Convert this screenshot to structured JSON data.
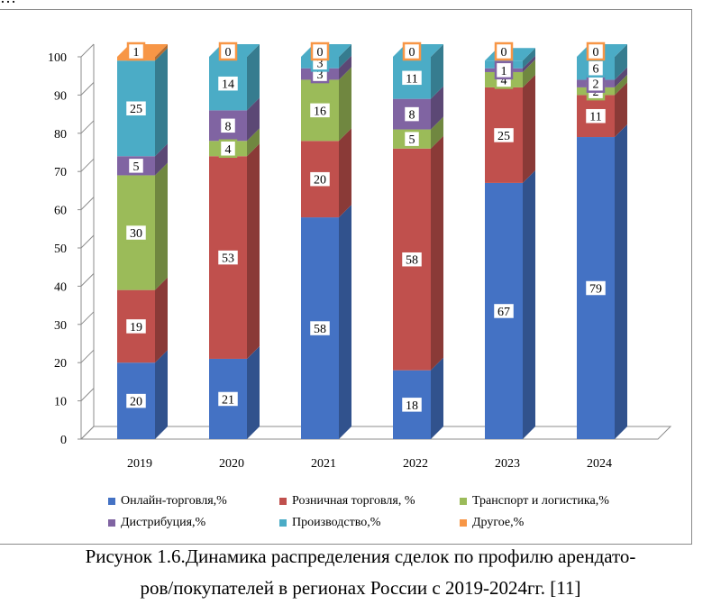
{
  "partial_top_text": "…",
  "caption": {
    "line1": "Рисунок  1.6.Динамика распределения сделок по профилю арендато-",
    "line2": "ров/покупателей в регионах России с  2019-2024гг. [11]"
  },
  "chart_data": {
    "type": "bar",
    "stacked": true,
    "three_d": true,
    "categories": [
      "2019",
      "2020",
      "2021",
      "2022",
      "2023",
      "2024"
    ],
    "ylim": [
      0,
      100
    ],
    "yticks": [
      0,
      10,
      20,
      30,
      40,
      50,
      60,
      70,
      80,
      90,
      100
    ],
    "grid": false,
    "legend_position": "bottom",
    "series": [
      {
        "name": "Онлайн-торговля,%",
        "color": "#4472c4",
        "values": [
          20,
          21,
          58,
          18,
          67,
          79
        ],
        "labels": [
          "20",
          "21",
          "58",
          "18",
          "67",
          "79"
        ]
      },
      {
        "name": "Розничная торговля, %",
        "color": "#c0504d",
        "values": [
          19,
          53,
          20,
          58,
          25,
          11
        ],
        "labels": [
          "19",
          "53",
          "20",
          "58",
          "25",
          "11"
        ]
      },
      {
        "name": "Транспорт и логистика,%",
        "color": "#9bbb59",
        "values": [
          30,
          4,
          16,
          5,
          4,
          2
        ],
        "labels": [
          "30",
          "4",
          "16",
          "5",
          "4",
          "2"
        ]
      },
      {
        "name": "Дистрибуция,%",
        "color": "#8064a2",
        "values": [
          5,
          8,
          3,
          8,
          1,
          2
        ],
        "labels": [
          "5",
          "8",
          "3",
          "8",
          "1",
          "2"
        ]
      },
      {
        "name": "Производство,%",
        "color": "#4bacc6",
        "values": [
          25,
          14,
          3,
          11,
          2,
          6
        ],
        "labels": [
          "25",
          "14",
          "3",
          "11",
          "",
          "6"
        ]
      },
      {
        "name": "Другое,%",
        "color": "#f79646",
        "values": [
          1,
          0,
          0,
          0,
          0,
          0
        ],
        "labels": [
          "1",
          "0",
          "0",
          "0",
          "0",
          "0"
        ]
      }
    ]
  }
}
